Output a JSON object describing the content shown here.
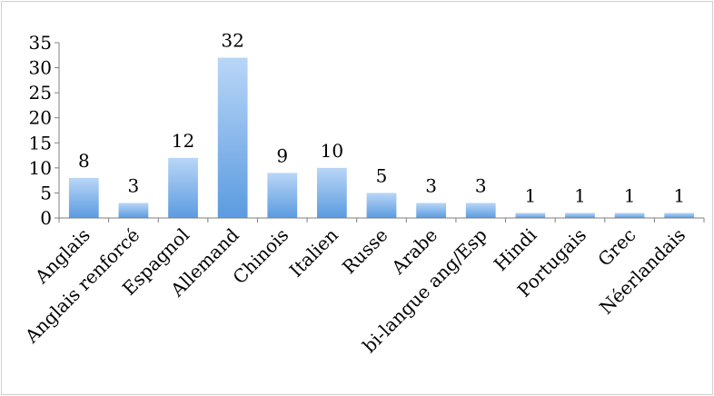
{
  "chart_data": {
    "type": "bar",
    "title": "",
    "xlabel": "",
    "ylabel": "",
    "categories": [
      "Anglais",
      "Anglais renforcé",
      "Espagnol",
      "Allemand",
      "Chinois",
      "Italien",
      "Russe",
      "Arabe",
      "bi-langue ang/Esp",
      "Hindi",
      "Portugais",
      "Grec",
      "Néerlandais"
    ],
    "values": [
      8,
      3,
      12,
      32,
      9,
      10,
      5,
      3,
      3,
      1,
      1,
      1,
      1
    ],
    "ylim": [
      0,
      35
    ],
    "yticks": [
      0,
      5,
      10,
      15,
      20,
      25,
      30,
      35
    ],
    "grid": false,
    "legend": "none",
    "data_labels": true,
    "bar_color_light": "#b9d6f7",
    "bar_color_dark": "#5b9be0",
    "axis_color": "#7f7f7f"
  }
}
